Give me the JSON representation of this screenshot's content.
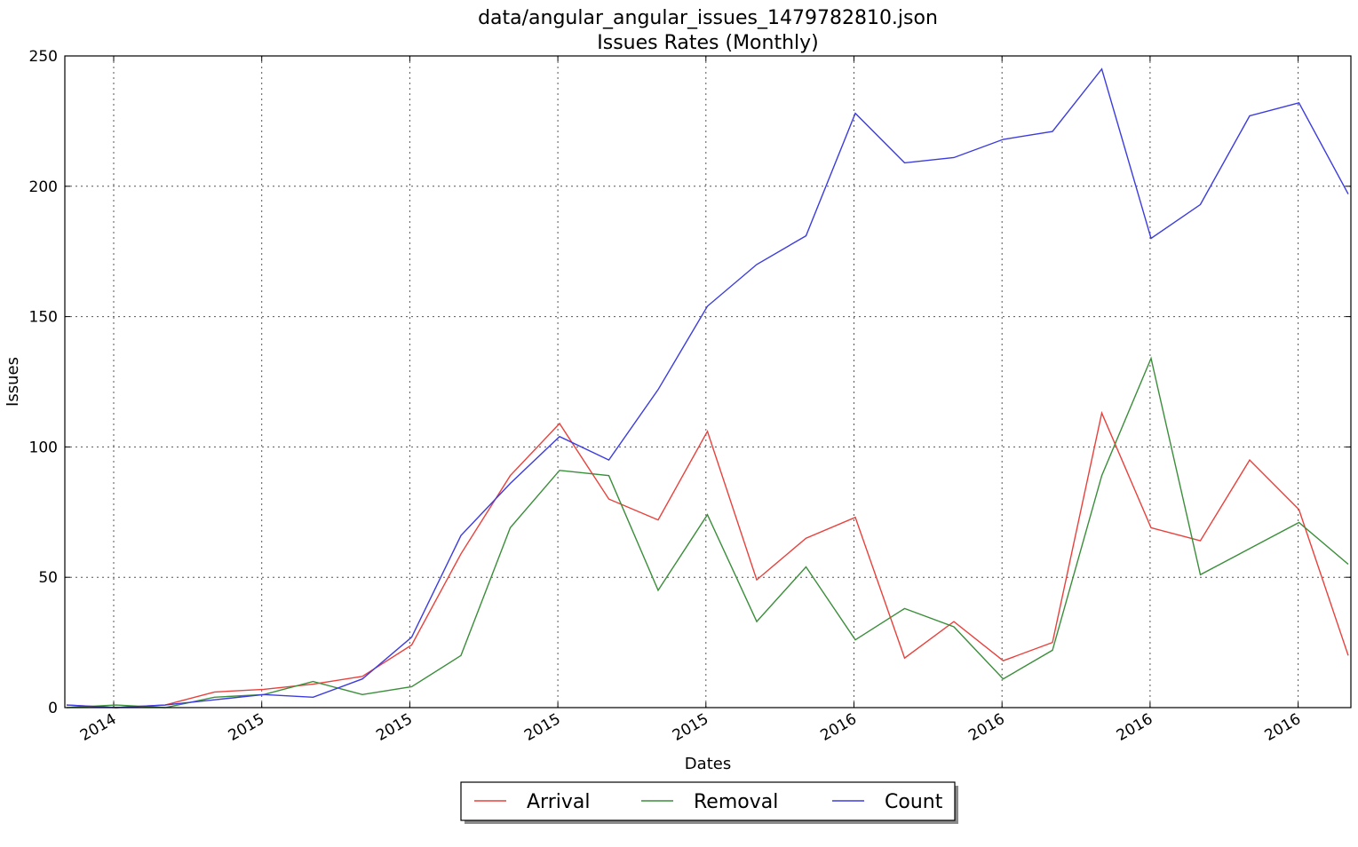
{
  "chart_data": {
    "type": "line",
    "title": "data/angular_angular_issues_1479782810.json",
    "subtitle": "Issues Rates (Monthly)",
    "xlabel": "Dates",
    "ylabel": "Issues",
    "ylim": [
      0,
      250
    ],
    "yticks": [
      0,
      50,
      100,
      150,
      200,
      250
    ],
    "xtick_labels": [
      "2014",
      "2015",
      "2015",
      "2015",
      "2015",
      "2016",
      "2016",
      "2016",
      "2016"
    ],
    "grid": true,
    "legend_position": "bottom-center",
    "series": [
      {
        "name": "Arrival",
        "color": "#e8413c",
        "values": [
          1,
          0,
          1,
          6,
          7,
          9,
          12,
          24,
          59,
          89,
          109,
          80,
          72,
          106,
          49,
          65,
          73,
          19,
          33,
          18,
          25,
          113,
          69,
          64,
          95,
          76,
          20
        ]
      },
      {
        "name": "Removal",
        "color": "#3a8e3a",
        "values": [
          0,
          1,
          0,
          4,
          5,
          10,
          5,
          8,
          20,
          69,
          91,
          89,
          45,
          74,
          33,
          54,
          26,
          38,
          31,
          11,
          22,
          89,
          134,
          51,
          61,
          71,
          55
        ]
      },
      {
        "name": "Count",
        "color": "#3b3be0",
        "values": [
          1,
          0,
          1,
          3,
          5,
          4,
          11,
          27,
          66,
          86,
          104,
          95,
          122,
          154,
          170,
          181,
          228,
          209,
          211,
          218,
          221,
          245,
          180,
          193,
          227,
          232,
          197
        ]
      }
    ]
  }
}
